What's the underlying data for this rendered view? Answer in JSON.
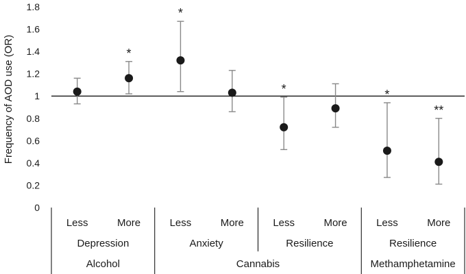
{
  "chart_data": {
    "type": "scatter",
    "ylabel": "Frequency of AOD use (OR)",
    "ylim": [
      0,
      1.8
    ],
    "yticks": [
      "0",
      "0.2",
      "0.4",
      "0.6",
      "0.8",
      "1",
      "1.2",
      "1.4",
      "1.6",
      "1.8"
    ],
    "reference_line": 1,
    "grid": false,
    "points": [
      {
        "level": "Less",
        "group": "Depression",
        "substance": "Alcohol",
        "or": 1.04,
        "ci_low": 0.93,
        "ci_high": 1.16,
        "sig": ""
      },
      {
        "level": "More",
        "group": "Depression",
        "substance": "Alcohol",
        "or": 1.16,
        "ci_low": 1.02,
        "ci_high": 1.31,
        "sig": "*"
      },
      {
        "level": "Less",
        "group": "Anxiety",
        "substance": "Cannabis",
        "or": 1.32,
        "ci_low": 1.04,
        "ci_high": 1.67,
        "sig": "*"
      },
      {
        "level": "More",
        "group": "Anxiety",
        "substance": "Cannabis",
        "or": 1.03,
        "ci_low": 0.86,
        "ci_high": 1.23,
        "sig": ""
      },
      {
        "level": "Less",
        "group": "Resilience",
        "substance": "Cannabis",
        "or": 0.72,
        "ci_low": 0.52,
        "ci_high": 0.99,
        "sig": "*"
      },
      {
        "level": "More",
        "group": "Resilience",
        "substance": "Cannabis",
        "or": 0.89,
        "ci_low": 0.72,
        "ci_high": 1.11,
        "sig": ""
      },
      {
        "level": "Less",
        "group": "Resilience",
        "substance": "Methamphetamine",
        "or": 0.51,
        "ci_low": 0.27,
        "ci_high": 0.94,
        "sig": "*"
      },
      {
        "level": "More",
        "group": "Resilience",
        "substance": "Methamphetamine",
        "or": 0.41,
        "ci_low": 0.21,
        "ci_high": 0.8,
        "sig": "**"
      }
    ],
    "groups": [
      {
        "label": "Depression",
        "start": 0,
        "end": 1
      },
      {
        "label": "Anxiety",
        "start": 2,
        "end": 3
      },
      {
        "label": "Resilience",
        "start": 4,
        "end": 5
      },
      {
        "label": "Resilience",
        "start": 6,
        "end": 7
      }
    ],
    "substances": [
      {
        "label": "Alcohol",
        "start": 0,
        "end": 1
      },
      {
        "label": "Cannabis",
        "start": 2,
        "end": 5
      },
      {
        "label": "Methamphetamine",
        "start": 6,
        "end": 7
      }
    ]
  }
}
